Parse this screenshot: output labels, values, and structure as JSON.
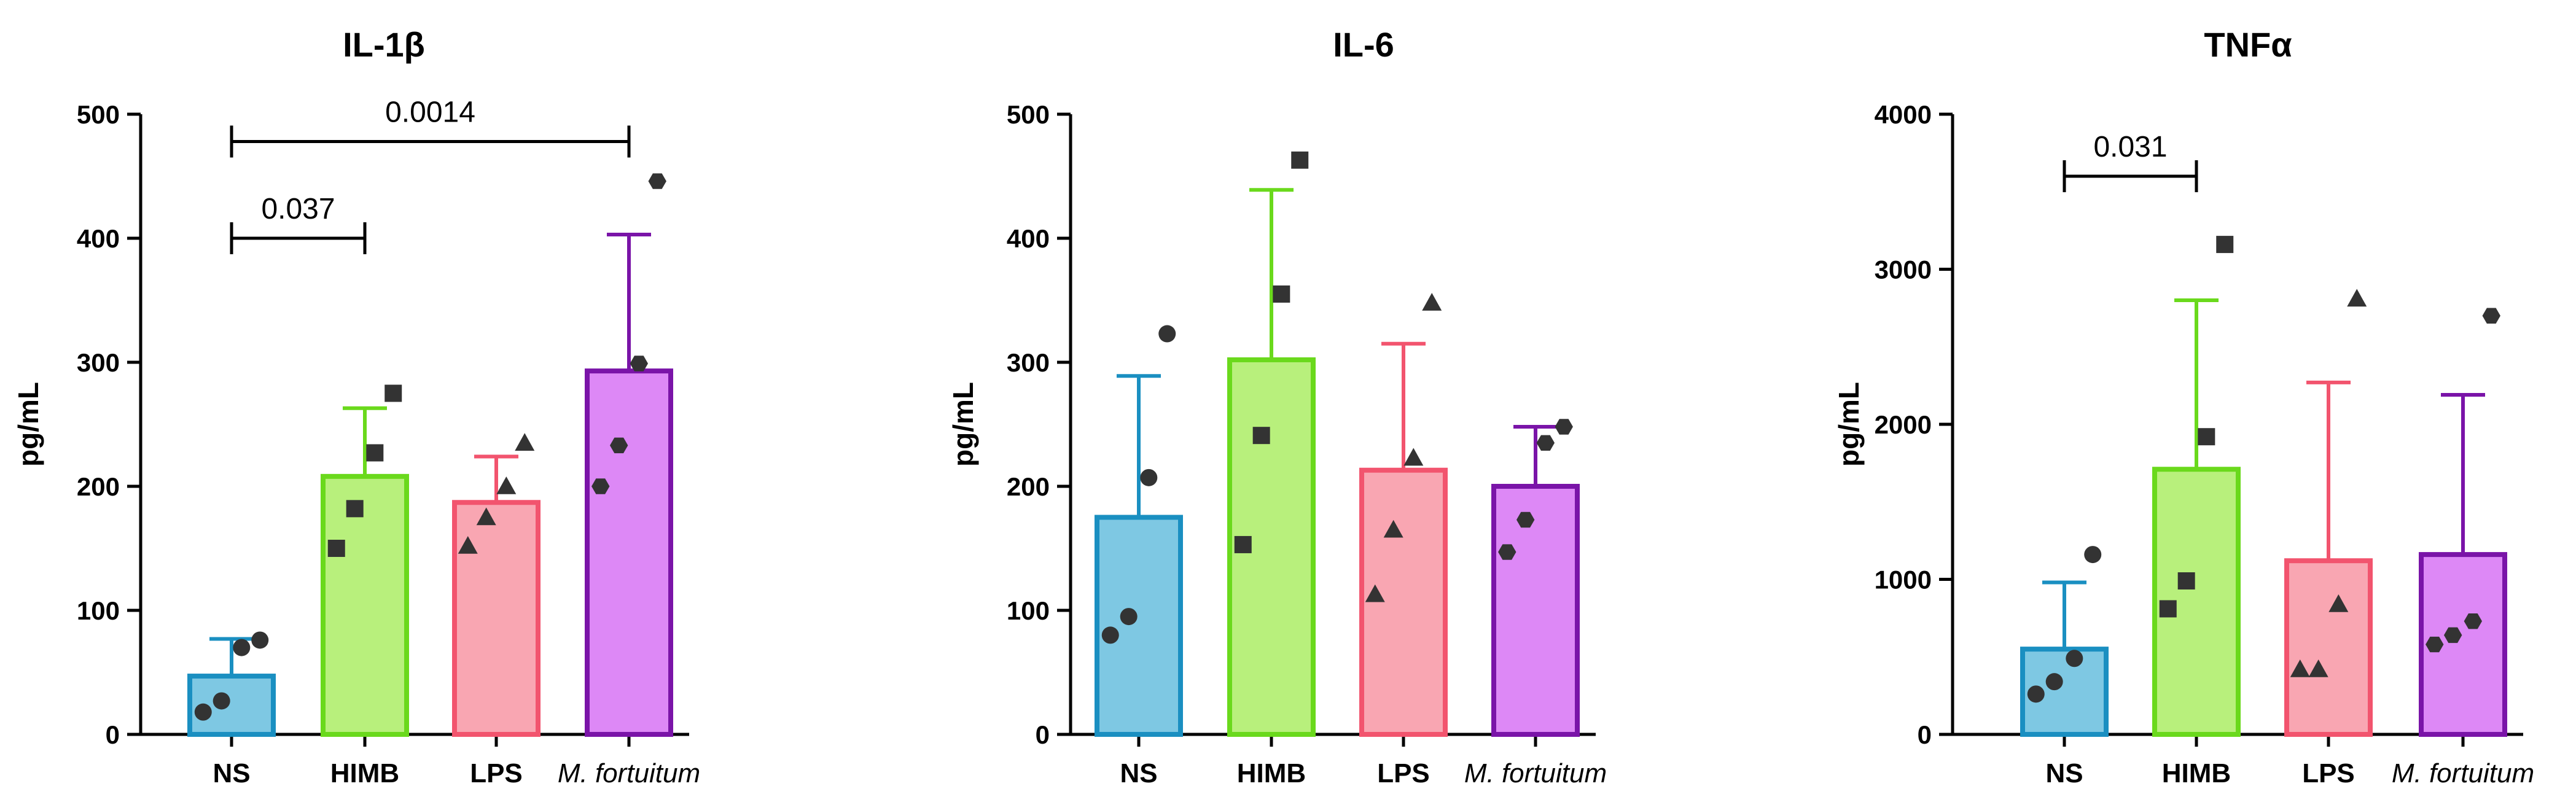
{
  "chart_data": [
    {
      "type": "bar",
      "title": "IL-1β",
      "ylabel": "pg/mL",
      "ylim": [
        0,
        500
      ],
      "yticks": [
        0,
        100,
        200,
        300,
        400,
        500
      ],
      "categories": [
        "NS",
        "HIMB",
        "LPS",
        "M. fortuitum"
      ],
      "values": [
        47,
        208,
        187,
        293
      ],
      "sd": [
        30,
        55,
        37,
        110
      ],
      "points": [
        [
          18,
          27,
          70,
          76
        ],
        [
          150,
          182,
          227,
          275
        ],
        [
          152,
          175,
          200,
          235
        ],
        [
          200,
          233,
          299,
          446
        ]
      ],
      "markers": [
        "circle",
        "square",
        "triangle",
        "hexagon"
      ],
      "comparisons": [
        {
          "from": 0,
          "to": 1,
          "label": "0.037",
          "y": 400
        },
        {
          "from": 0,
          "to": 3,
          "label": "0.0014",
          "y": 478
        }
      ]
    },
    {
      "type": "bar",
      "title": "IL-6",
      "ylabel": "pg/mL",
      "ylim": [
        0,
        500
      ],
      "yticks": [
        0,
        100,
        200,
        300,
        400,
        500
      ],
      "categories": [
        "NS",
        "HIMB",
        "LPS",
        "M. fortuitum"
      ],
      "values": [
        175,
        302,
        213,
        200
      ],
      "sd": [
        114,
        137,
        102,
        48
      ],
      "points": [
        [
          80,
          95,
          207,
          323
        ],
        [
          153,
          241,
          355,
          463
        ],
        [
          113,
          165,
          223,
          348
        ],
        [
          147,
          173,
          235,
          248
        ]
      ],
      "markers": [
        "circle",
        "square",
        "triangle",
        "hexagon"
      ],
      "comparisons": []
    },
    {
      "type": "bar",
      "title": "TNFα",
      "ylabel": "pg/mL",
      "ylim": [
        0,
        4000
      ],
      "yticks": [
        0,
        1000,
        2000,
        3000,
        4000
      ],
      "categories": [
        "NS",
        "HIMB",
        "LPS",
        "M. fortuitum"
      ],
      "values": [
        550,
        1710,
        1120,
        1160
      ],
      "sd": [
        430,
        1090,
        1150,
        1030
      ],
      "points": [
        [
          260,
          340,
          490,
          1160
        ],
        [
          810,
          990,
          1920,
          3160
        ],
        [
          420,
          420,
          840,
          2810
        ],
        [
          580,
          640,
          730,
          2700
        ]
      ],
      "markers": [
        "circle",
        "square",
        "triangle",
        "hexagon"
      ],
      "comparisons": [
        {
          "from": 0,
          "to": 1,
          "label": "0.031",
          "y": 3600
        }
      ]
    }
  ],
  "colors": {
    "fills": [
      "#7ec8e3",
      "#b8f07c",
      "#f9a6b2",
      "#dd88f6"
    ],
    "strokes": [
      "#1a8fc1",
      "#6ad91c",
      "#f2546e",
      "#7a14a8"
    ],
    "points": "#333333",
    "axis": "#000000"
  }
}
